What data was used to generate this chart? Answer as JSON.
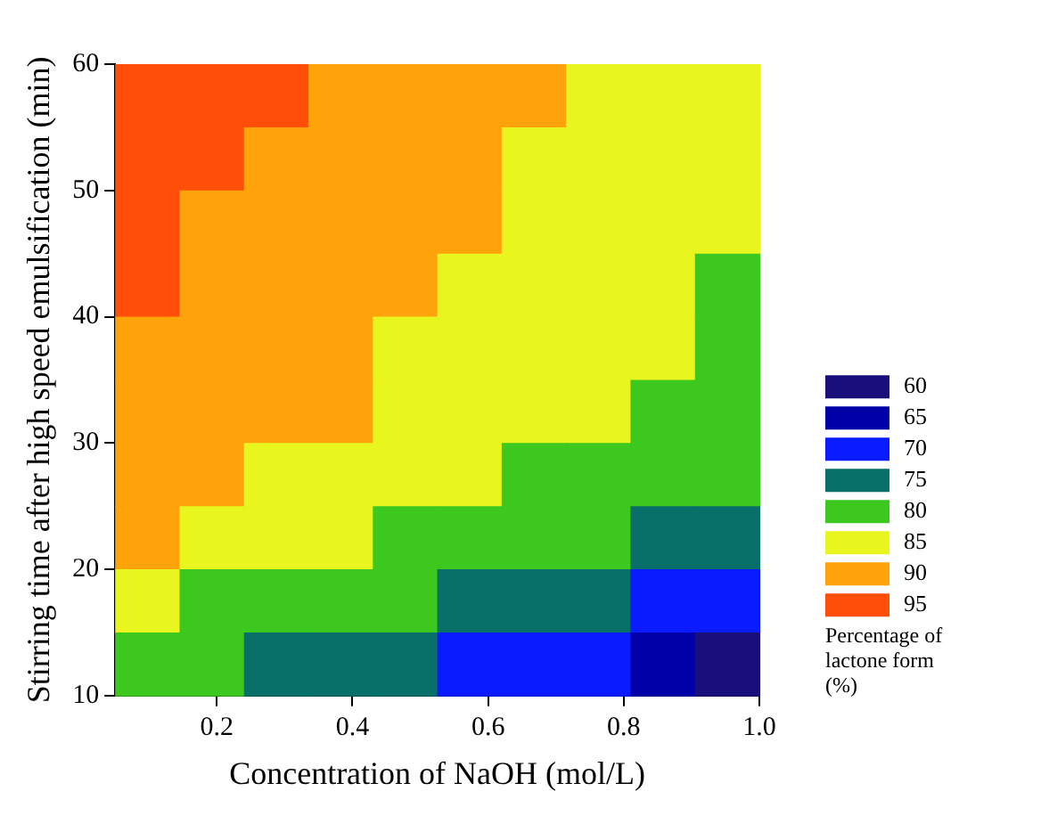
{
  "chart_data": {
    "type": "heatmap",
    "xlabel": "Concentration of NaOH (mol/L)",
    "ylabel": "Stirring time after high speed emulsification (min)",
    "clabel": "Percentage of lactone form (%)",
    "xlim": [
      0.05,
      1.0
    ],
    "xticks": [
      {
        "value": 0.2,
        "label": "0.2"
      },
      {
        "value": 0.4,
        "label": "0.4"
      },
      {
        "value": 0.6,
        "label": "0.6"
      },
      {
        "value": 0.8,
        "label": "0.8"
      },
      {
        "value": 1.0,
        "label": "1.0"
      }
    ],
    "ylim": [
      10,
      60
    ],
    "yticks": [
      10,
      20,
      30,
      40,
      50,
      60
    ],
    "clim": [
      57.5,
      97.5
    ],
    "cticks": [
      60,
      65,
      70,
      75,
      80,
      85,
      90,
      95
    ],
    "cells": [
      [
        95,
        95,
        95,
        90,
        90,
        90,
        90,
        85,
        85,
        85
      ],
      [
        95,
        95,
        90,
        90,
        90,
        90,
        85,
        85,
        85,
        85
      ],
      [
        95,
        90,
        90,
        90,
        90,
        90,
        85,
        85,
        85,
        85
      ],
      [
        95,
        90,
        90,
        90,
        90,
        85,
        85,
        85,
        85,
        80
      ],
      [
        90,
        90,
        90,
        90,
        85,
        85,
        85,
        85,
        85,
        80
      ],
      [
        90,
        90,
        90,
        90,
        85,
        85,
        85,
        85,
        80,
        80
      ],
      [
        90,
        90,
        85,
        85,
        85,
        85,
        80,
        80,
        80,
        80
      ],
      [
        90,
        85,
        85,
        85,
        80,
        80,
        80,
        80,
        75,
        75
      ],
      [
        85,
        80,
        80,
        80,
        80,
        75,
        75,
        75,
        70,
        70
      ],
      [
        80,
        80,
        75,
        75,
        75,
        70,
        70,
        70,
        65,
        60
      ]
    ],
    "grid": false
  }
}
